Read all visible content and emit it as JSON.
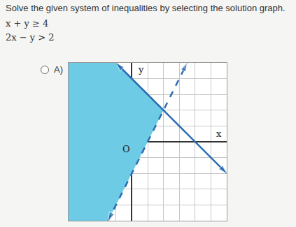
{
  "header": {
    "prompt": "Solve the given system of inequalities by selecting the solution graph.",
    "inequalities": [
      "x + y ≥ 4",
      "2x − y > 2"
    ]
  },
  "option": "A)",
  "chart_data": {
    "type": "line",
    "xlim": [
      -4,
      6
    ],
    "ylim": [
      -5,
      5
    ],
    "xticks": [
      -4,
      -3,
      -2,
      -1,
      0,
      1,
      2,
      3,
      4,
      5,
      6
    ],
    "yticks": [
      -5,
      -4,
      -3,
      -2,
      -1,
      0,
      1,
      2,
      3,
      4,
      5
    ],
    "grid": true,
    "tick_labels": false,
    "series": [
      {
        "type": "area",
        "color": "#6dcbe6",
        "x": [
          -4,
          -1,
          2,
          -1.5,
          -4
        ],
        "values": [
          5,
          5,
          2,
          -5,
          -5
        ]
      },
      {
        "type": "line",
        "color": "#2b6cb0",
        "line_style": "solid",
        "marker": "arrow",
        "x": [
          -1,
          6
        ],
        "values": [
          5,
          -2
        ]
      },
      {
        "type": "line",
        "color": "#2b6cb0",
        "line_style": "dash",
        "marker": "arrow",
        "x": [
          -1.5,
          3.5
        ],
        "values": [
          -5,
          5
        ]
      }
    ],
    "annotations": [
      {
        "text": "y",
        "x": 0.6,
        "y": 4.6
      },
      {
        "text": "x",
        "x": 5.5,
        "y": 0.5
      },
      {
        "text": "O",
        "x": -0.35,
        "y": -0.45
      }
    ]
  }
}
